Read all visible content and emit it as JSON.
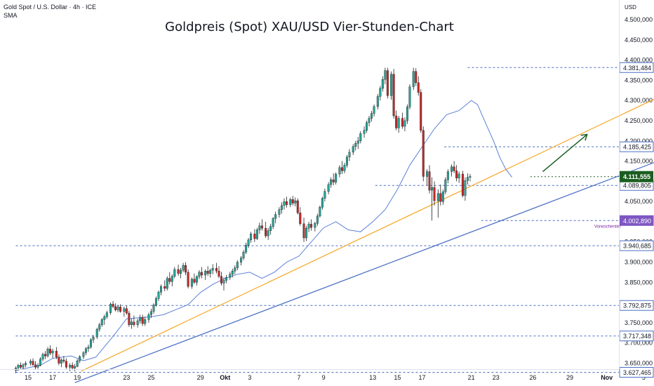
{
  "header": {
    "symbol": "Gold Spot / U.S. Dollar · 4h · ICE",
    "indicator": "SMA",
    "title": "Goldpreis (Spot) XAU/USD Vier-Stunden-Chart"
  },
  "chart_data": {
    "type": "candlestick",
    "title": "Goldpreis (Spot) XAU/USD Vier-Stunden-Chart",
    "currency": "USD",
    "ylim": [
      3600,
      4550
    ],
    "y_ticks": [
      "4.500,000",
      "4.450,000",
      "4.400,000",
      "4.350,000",
      "4.300,000",
      "4.250,000",
      "4.200,000",
      "4.150,000",
      "4.100,000",
      "4.050,000",
      "3.950,000",
      "3.900,000",
      "3.850,000",
      "3.750,000",
      "3.700,000",
      "3.650,000"
    ],
    "y_tick_values": [
      4500,
      4450,
      4400,
      4350,
      4300,
      4250,
      4200,
      4150,
      4100,
      4050,
      3950,
      3900,
      3850,
      3750,
      3700,
      3650
    ],
    "x_ticks": [
      "15",
      "17",
      "19",
      "23",
      "25",
      "29",
      "Okt",
      "3",
      "7",
      "9",
      "13",
      "15",
      "17",
      "21",
      "23",
      "26",
      "29",
      "Nov",
      "5"
    ],
    "x_tick_days": [
      15,
      17,
      19,
      23,
      25,
      29,
      31,
      33,
      37,
      39,
      43,
      45,
      47,
      51,
      53,
      56,
      59,
      62,
      65
    ],
    "last_price": {
      "label": "4.111,555",
      "value": 4111.555,
      "day": 55.8
    },
    "price_levels": [
      {
        "label": "4.381,484",
        "value": 4381.484,
        "from_day": 50.7,
        "style": "line"
      },
      {
        "label": "4.185,425",
        "value": 4185.425,
        "from_day": 48.8,
        "style": "line"
      },
      {
        "label": "4.089,805",
        "value": 4089.805,
        "from_day": 43.2,
        "style": "line"
      },
      {
        "label": "4.002,890",
        "value": 4002.89,
        "from_day": 51.8,
        "style": "line",
        "note": "Vorwochentief"
      },
      {
        "label": "3.940,685",
        "value": 3940.685,
        "from_day": 14,
        "style": "line"
      },
      {
        "label": "3.792,875",
        "value": 3792.875,
        "from_day": 14,
        "style": "line"
      },
      {
        "label": "3.717,348",
        "value": 3717.348,
        "from_day": 14,
        "style": "line"
      },
      {
        "label": "3.627,465",
        "value": 3627.465,
        "from_day": 14,
        "style": "line"
      }
    ],
    "trendlines": [
      {
        "name": "support",
        "color": "#4a6fc4",
        "points": [
          [
            18.8,
            3602
          ],
          [
            67.7,
            4168
          ]
        ]
      },
      {
        "name": "orange",
        "color": "#f5a623",
        "points": [
          [
            19.3,
            3630
          ],
          [
            67.7,
            4330
          ]
        ]
      },
      {
        "name": "arrow",
        "color": "#1b5e20",
        "points": [
          [
            56.8,
            4124
          ],
          [
            60.4,
            4216
          ]
        ]
      }
    ],
    "sma": [
      [
        14,
        3632
      ],
      [
        16,
        3645
      ],
      [
        17,
        3662
      ],
      [
        18.5,
        3668
      ],
      [
        19.5,
        3656
      ],
      [
        20.5,
        3665
      ],
      [
        22,
        3720
      ],
      [
        23,
        3760
      ],
      [
        25,
        3765
      ],
      [
        26,
        3770
      ],
      [
        28,
        3795
      ],
      [
        29,
        3825
      ],
      [
        30,
        3845
      ],
      [
        31,
        3860
      ],
      [
        32,
        3870
      ],
      [
        33,
        3875
      ],
      [
        34,
        3860
      ],
      [
        35,
        3875
      ],
      [
        36,
        3900
      ],
      [
        37,
        3915
      ],
      [
        38,
        3950
      ],
      [
        39,
        3985
      ],
      [
        40,
        4000
      ],
      [
        41,
        3980
      ],
      [
        42,
        3975
      ],
      [
        43,
        4000
      ],
      [
        44,
        4030
      ],
      [
        45,
        4080
      ],
      [
        46,
        4140
      ],
      [
        47,
        4185
      ],
      [
        48,
        4230
      ],
      [
        49,
        4265
      ],
      [
        50,
        4275
      ],
      [
        51,
        4300
      ],
      [
        51.5,
        4290
      ],
      [
        52,
        4255
      ],
      [
        52.8,
        4200
      ],
      [
        53.3,
        4160
      ],
      [
        53.8,
        4130
      ],
      [
        54.3,
        4110
      ]
    ],
    "candles": [
      [
        14.0,
        3633,
        3642,
        3625,
        3638
      ],
      [
        14.2,
        3638,
        3648,
        3632,
        3645
      ],
      [
        14.4,
        3645,
        3652,
        3636,
        3640
      ],
      [
        14.6,
        3640,
        3650,
        3634,
        3646
      ],
      [
        14.8,
        3646,
        3655,
        3640,
        3650
      ],
      [
        15.2,
        3650,
        3660,
        3644,
        3655
      ],
      [
        15.4,
        3655,
        3662,
        3643,
        3646
      ],
      [
        15.6,
        3646,
        3655,
        3634,
        3640
      ],
      [
        15.8,
        3640,
        3650,
        3636,
        3645
      ],
      [
        16.0,
        3645,
        3665,
        3642,
        3660
      ],
      [
        16.2,
        3660,
        3676,
        3655,
        3672
      ],
      [
        16.4,
        3672,
        3680,
        3660,
        3668
      ],
      [
        16.6,
        3668,
        3690,
        3664,
        3685
      ],
      [
        16.8,
        3685,
        3694,
        3670,
        3675
      ],
      [
        17.0,
        3675,
        3686,
        3663,
        3680
      ],
      [
        17.3,
        3680,
        3690,
        3660,
        3665
      ],
      [
        17.5,
        3665,
        3672,
        3645,
        3650
      ],
      [
        17.7,
        3650,
        3662,
        3640,
        3658
      ],
      [
        17.9,
        3658,
        3668,
        3650,
        3655
      ],
      [
        18.1,
        3655,
        3662,
        3636,
        3640
      ],
      [
        18.4,
        3640,
        3650,
        3630,
        3645
      ],
      [
        18.6,
        3645,
        3652,
        3633,
        3638
      ],
      [
        18.8,
        3638,
        3648,
        3630,
        3642
      ],
      [
        19.0,
        3642,
        3660,
        3640,
        3656
      ],
      [
        19.2,
        3656,
        3670,
        3650,
        3666
      ],
      [
        19.5,
        3666,
        3680,
        3660,
        3676
      ],
      [
        19.7,
        3676,
        3690,
        3670,
        3686
      ],
      [
        19.9,
        3686,
        3696,
        3678,
        3690
      ],
      [
        20.1,
        3690,
        3712,
        3686,
        3708
      ],
      [
        20.3,
        3708,
        3720,
        3700,
        3715
      ],
      [
        20.6,
        3715,
        3738,
        3710,
        3734
      ],
      [
        20.8,
        3734,
        3750,
        3728,
        3745
      ],
      [
        21.0,
        3745,
        3762,
        3740,
        3758
      ],
      [
        21.2,
        3758,
        3770,
        3745,
        3765
      ],
      [
        21.4,
        3765,
        3780,
        3760,
        3775
      ],
      [
        21.7,
        3775,
        3800,
        3770,
        3796
      ],
      [
        21.9,
        3796,
        3804,
        3786,
        3790
      ],
      [
        22.1,
        3790,
        3798,
        3778,
        3782
      ],
      [
        22.3,
        3782,
        3794,
        3776,
        3789
      ],
      [
        22.5,
        3789,
        3796,
        3775,
        3778
      ],
      [
        22.8,
        3778,
        3790,
        3765,
        3785
      ],
      [
        23.0,
        3785,
        3792,
        3770,
        3774
      ],
      [
        23.2,
        3774,
        3780,
        3740,
        3745
      ],
      [
        23.4,
        3745,
        3760,
        3735,
        3752
      ],
      [
        23.6,
        3752,
        3768,
        3740,
        3745
      ],
      [
        23.9,
        3745,
        3760,
        3738,
        3755
      ],
      [
        24.1,
        3755,
        3770,
        3748,
        3763
      ],
      [
        24.3,
        3763,
        3770,
        3742,
        3748
      ],
      [
        24.5,
        3748,
        3765,
        3742,
        3758
      ],
      [
        24.8,
        3758,
        3775,
        3750,
        3770
      ],
      [
        25.0,
        3770,
        3785,
        3762,
        3778
      ],
      [
        25.2,
        3778,
        3798,
        3772,
        3794
      ],
      [
        25.4,
        3794,
        3815,
        3790,
        3810
      ],
      [
        25.6,
        3810,
        3830,
        3804,
        3826
      ],
      [
        25.8,
        3826,
        3845,
        3818,
        3840
      ],
      [
        26.1,
        3840,
        3855,
        3828,
        3835
      ],
      [
        26.3,
        3835,
        3865,
        3830,
        3860
      ],
      [
        26.5,
        3860,
        3875,
        3845,
        3852
      ],
      [
        26.7,
        3852,
        3870,
        3840,
        3865
      ],
      [
        26.9,
        3865,
        3888,
        3860,
        3882
      ],
      [
        27.2,
        3882,
        3894,
        3866,
        3872
      ],
      [
        27.4,
        3872,
        3886,
        3860,
        3880
      ],
      [
        27.6,
        3880,
        3898,
        3875,
        3892
      ],
      [
        27.8,
        3892,
        3900,
        3868,
        3875
      ],
      [
        28.0,
        3875,
        3882,
        3835,
        3840
      ],
      [
        28.3,
        3840,
        3862,
        3834,
        3858
      ],
      [
        28.5,
        3858,
        3872,
        3846,
        3850
      ],
      [
        28.7,
        3850,
        3868,
        3842,
        3864
      ],
      [
        28.9,
        3864,
        3880,
        3858,
        3875
      ],
      [
        29.1,
        3875,
        3888,
        3860,
        3868
      ],
      [
        29.4,
        3868,
        3882,
        3856,
        3878
      ],
      [
        29.6,
        3878,
        3890,
        3866,
        3872
      ],
      [
        29.8,
        3872,
        3884,
        3862,
        3880
      ],
      [
        30.0,
        3880,
        3895,
        3870,
        3885
      ],
      [
        30.3,
        3885,
        3898,
        3872,
        3878
      ],
      [
        30.5,
        3878,
        3890,
        3860,
        3865
      ],
      [
        30.7,
        3865,
        3876,
        3842,
        3848
      ],
      [
        30.9,
        3848,
        3862,
        3830,
        3855
      ],
      [
        31.1,
        3855,
        3868,
        3848,
        3862
      ],
      [
        31.4,
        3862,
        3876,
        3856,
        3870
      ],
      [
        31.6,
        3870,
        3884,
        3862,
        3878
      ],
      [
        31.8,
        3878,
        3892,
        3870,
        3886
      ],
      [
        32.0,
        3886,
        3905,
        3880,
        3900
      ],
      [
        32.3,
        3900,
        3915,
        3892,
        3910
      ],
      [
        32.5,
        3910,
        3930,
        3905,
        3925
      ],
      [
        32.7,
        3925,
        3948,
        3920,
        3942
      ],
      [
        32.9,
        3942,
        3960,
        3935,
        3955
      ],
      [
        33.1,
        3955,
        3975,
        3948,
        3970
      ],
      [
        33.4,
        3970,
        3982,
        3950,
        3958
      ],
      [
        33.6,
        3958,
        3985,
        3955,
        3980
      ],
      [
        33.8,
        3980,
        3998,
        3970,
        3990
      ],
      [
        34.0,
        3990,
        4006,
        3978,
        3984
      ],
      [
        34.3,
        3984,
        4000,
        3960,
        3965
      ],
      [
        34.5,
        3965,
        3985,
        3955,
        3978
      ],
      [
        34.7,
        3978,
        3995,
        3968,
        3988
      ],
      [
        34.9,
        3988,
        4012,
        3982,
        4008
      ],
      [
        35.1,
        4008,
        4025,
        3996,
        4018
      ],
      [
        35.4,
        4018,
        4036,
        4010,
        4030
      ],
      [
        35.6,
        4030,
        4048,
        4020,
        4040
      ],
      [
        35.8,
        4040,
        4058,
        4030,
        4050
      ],
      [
        36.0,
        4050,
        4062,
        4035,
        4042
      ],
      [
        36.3,
        4042,
        4060,
        4036,
        4055
      ],
      [
        36.5,
        4055,
        4064,
        4040,
        4046
      ],
      [
        36.7,
        4046,
        4060,
        4038,
        4052
      ],
      [
        36.9,
        4052,
        4058,
        4018,
        4022
      ],
      [
        37.1,
        4022,
        4036,
        3990,
        3995
      ],
      [
        37.4,
        3995,
        4010,
        3950,
        3960
      ],
      [
        37.6,
        3960,
        3990,
        3952,
        3984
      ],
      [
        37.8,
        3984,
        4000,
        3974,
        3994
      ],
      [
        38.0,
        3994,
        4006,
        3978,
        3986
      ],
      [
        38.3,
        3986,
        4000,
        3976,
        3996
      ],
      [
        38.5,
        3996,
        4020,
        3990,
        4014
      ],
      [
        38.7,
        4014,
        4040,
        4010,
        4036
      ],
      [
        38.9,
        4036,
        4062,
        4030,
        4058
      ],
      [
        39.1,
        4058,
        4082,
        4050,
        4075
      ],
      [
        39.4,
        4075,
        4098,
        4068,
        4092
      ],
      [
        39.6,
        4092,
        4110,
        4084,
        4104
      ],
      [
        39.8,
        4104,
        4120,
        4090,
        4098
      ],
      [
        40.0,
        4098,
        4122,
        4092,
        4118
      ],
      [
        40.3,
        4118,
        4140,
        4110,
        4134
      ],
      [
        40.5,
        4134,
        4150,
        4118,
        4126
      ],
      [
        40.7,
        4126,
        4146,
        4120,
        4140
      ],
      [
        40.9,
        4140,
        4165,
        4134,
        4160
      ],
      [
        41.1,
        4160,
        4180,
        4150,
        4172
      ],
      [
        41.4,
        4172,
        4192,
        4165,
        4186
      ],
      [
        41.6,
        4186,
        4200,
        4176,
        4194
      ],
      [
        41.8,
        4194,
        4210,
        4180,
        4200
      ],
      [
        42.0,
        4200,
        4224,
        4194,
        4218
      ],
      [
        42.3,
        4218,
        4236,
        4208,
        4226
      ],
      [
        42.5,
        4226,
        4250,
        4220,
        4245
      ],
      [
        42.7,
        4245,
        4262,
        4236,
        4256
      ],
      [
        42.9,
        4256,
        4274,
        4248,
        4268
      ],
      [
        43.1,
        4268,
        4290,
        4260,
        4285
      ],
      [
        43.4,
        4285,
        4316,
        4278,
        4310
      ],
      [
        43.6,
        4310,
        4336,
        4300,
        4330
      ],
      [
        43.8,
        4330,
        4360,
        4322,
        4352
      ],
      [
        44.0,
        4352,
        4381,
        4340,
        4374
      ],
      [
        44.2,
        4374,
        4381,
        4305,
        4312
      ],
      [
        44.5,
        4312,
        4372,
        4302,
        4365
      ],
      [
        44.7,
        4365,
        4378,
        4255,
        4262
      ],
      [
        44.9,
        4262,
        4275,
        4226,
        4232
      ],
      [
        45.1,
        4232,
        4262,
        4220,
        4256
      ],
      [
        45.4,
        4256,
        4270,
        4230,
        4236
      ],
      [
        45.6,
        4236,
        4258,
        4224,
        4250
      ],
      [
        45.8,
        4250,
        4290,
        4242,
        4284
      ],
      [
        46.0,
        4284,
        4340,
        4278,
        4334
      ],
      [
        46.3,
        4334,
        4381,
        4326,
        4372
      ],
      [
        46.5,
        4372,
        4380,
        4336,
        4344
      ],
      [
        46.7,
        4344,
        4360,
        4312,
        4320
      ],
      [
        46.9,
        4320,
        4328,
        4220,
        4226
      ],
      [
        47.1,
        4226,
        4236,
        4100,
        4112
      ],
      [
        47.4,
        4112,
        4130,
        4090,
        4124
      ],
      [
        47.6,
        4124,
        4140,
        4070,
        4078
      ],
      [
        47.8,
        4078,
        4110,
        4003,
        4085
      ],
      [
        48.0,
        4085,
        4100,
        4040,
        4052
      ],
      [
        48.3,
        4052,
        4080,
        4010,
        4070
      ],
      [
        48.5,
        4070,
        4092,
        4040,
        4050
      ],
      [
        48.7,
        4050,
        4080,
        4042,
        4074
      ],
      [
        48.9,
        4074,
        4110,
        4068,
        4104
      ],
      [
        49.1,
        4104,
        4130,
        4095,
        4124
      ],
      [
        49.4,
        4124,
        4142,
        4112,
        4136
      ],
      [
        49.6,
        4136,
        4150,
        4120,
        4126
      ],
      [
        49.8,
        4126,
        4140,
        4100,
        4108
      ],
      [
        50.0,
        4108,
        4124,
        4096,
        4118
      ],
      [
        50.3,
        4118,
        4126,
        4060,
        4065
      ],
      [
        50.5,
        4065,
        4110,
        4052,
        4102
      ],
      [
        50.7,
        4102,
        4120,
        4092,
        4110
      ],
      [
        50.9,
        4110,
        4118,
        4100,
        4112
      ]
    ]
  }
}
